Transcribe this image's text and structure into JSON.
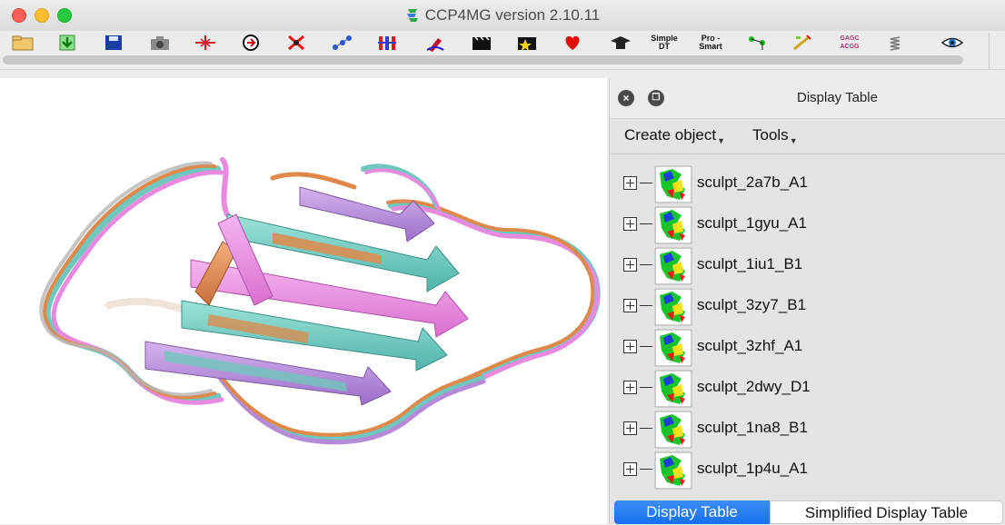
{
  "window": {
    "title": "CCP4MG version 2.10.11"
  },
  "toolbar": {
    "tools": [
      {
        "icon": "open-folder-icon"
      },
      {
        "icon": "download-arrow-icon"
      },
      {
        "icon": "save-disk-icon"
      },
      {
        "icon": "camera-icon"
      },
      {
        "icon": "center-target-icon"
      },
      {
        "icon": "rotate-dial-icon"
      },
      {
        "icon": "clear-x-icon"
      },
      {
        "icon": "connect-dots-icon"
      },
      {
        "icon": "bars-icon"
      },
      {
        "icon": "draw-pen-icon"
      },
      {
        "icon": "movie-clapper-icon"
      },
      {
        "icon": "movie-star-icon"
      },
      {
        "icon": "heart-icon"
      },
      {
        "icon": "hat-icon"
      },
      {
        "icon": "simple-dt-icon",
        "text": "Simple DT"
      },
      {
        "icon": "pro-smart-icon",
        "text": "Pro - Smart"
      },
      {
        "icon": "tree-nodes-icon"
      },
      {
        "icon": "magic-wand-icon"
      },
      {
        "icon": "sequence-icon",
        "text": "GAGC ACGG"
      },
      {
        "icon": "spring-icon"
      },
      {
        "icon": "eye-icon"
      }
    ]
  },
  "display_table": {
    "title": "Display Table",
    "menus": {
      "create_object": "Create object",
      "tools": "Tools"
    },
    "objects": [
      {
        "label": "sculpt_2a7b_A1"
      },
      {
        "label": "sculpt_1gyu_A1"
      },
      {
        "label": "sculpt_1iu1_B1"
      },
      {
        "label": "sculpt_3zy7_B1"
      },
      {
        "label": "sculpt_3zhf_A1"
      },
      {
        "label": "sculpt_2dwy_D1"
      },
      {
        "label": "sculpt_1na8_B1"
      },
      {
        "label": "sculpt_1p4u_A1"
      }
    ],
    "tabs": {
      "active": "Display Table",
      "inactive": "Simplified Display Table"
    }
  },
  "colors": {
    "ribbon_cyan": "#6fc7bd",
    "ribbon_pink": "#e88be0",
    "ribbon_orange": "#e0894a",
    "ribbon_lilac": "#b78ad8",
    "tab_active": "#1670ee"
  }
}
